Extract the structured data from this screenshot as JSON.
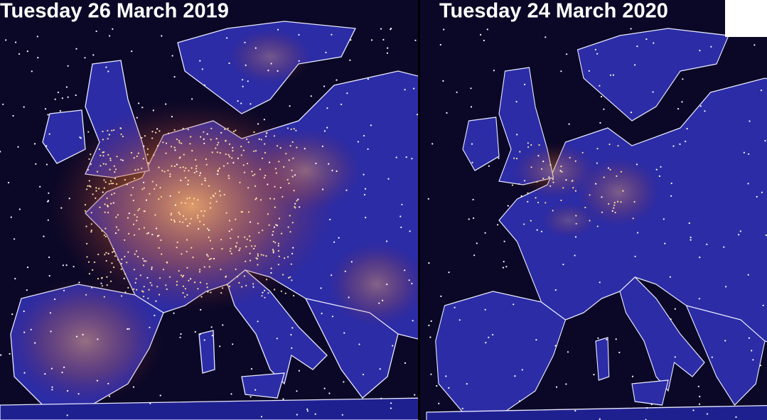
{
  "panels": [
    {
      "title": "Tuesday 26 March 2019"
    },
    {
      "title": "Tuesday 24 March 2020"
    }
  ]
}
